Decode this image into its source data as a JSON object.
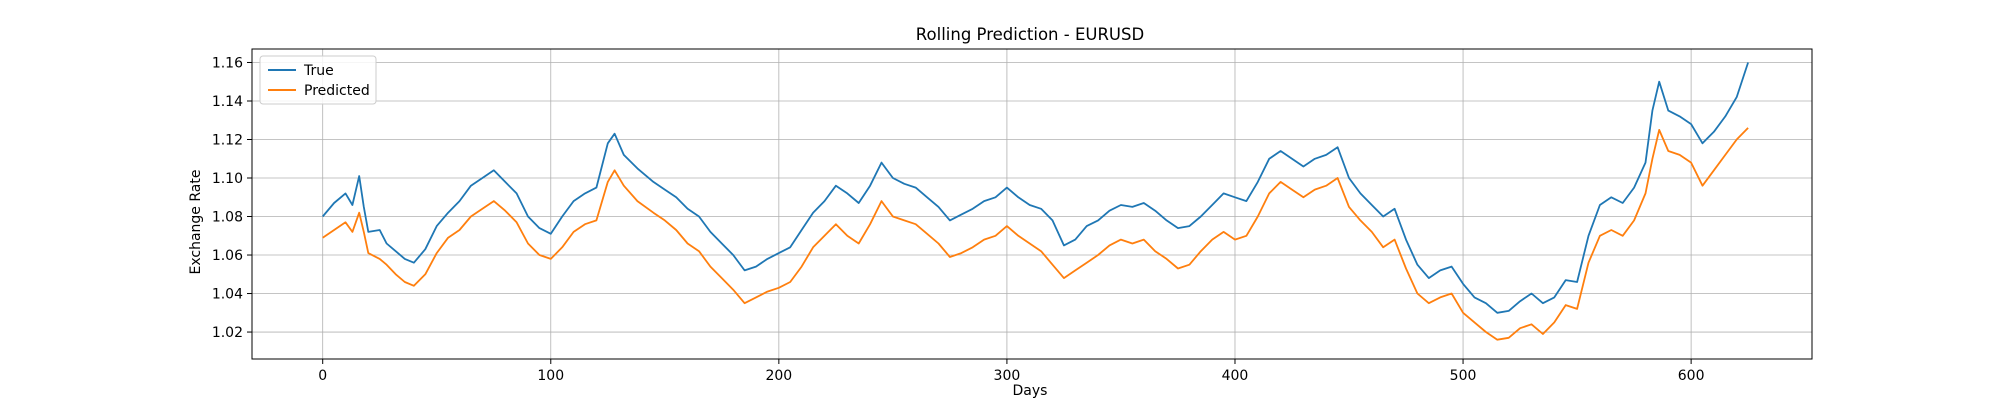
{
  "chart_data": {
    "type": "line",
    "title": "Rolling Prediction - EURUSD",
    "xlabel": "Days",
    "ylabel": "Exchange Rate",
    "xlim": [
      -31,
      653
    ],
    "ylim": [
      1.006,
      1.167
    ],
    "xticks": [
      0,
      100,
      200,
      300,
      400,
      500,
      600
    ],
    "xtick_labels": [
      "0",
      "100",
      "200",
      "300",
      "400",
      "500",
      "600"
    ],
    "yticks": [
      1.02,
      1.04,
      1.06,
      1.08,
      1.1,
      1.12,
      1.14,
      1.16
    ],
    "ytick_labels": [
      "1.02",
      "1.04",
      "1.06",
      "1.08",
      "1.10",
      "1.12",
      "1.14",
      "1.16"
    ],
    "grid": true,
    "legend_position": "top-left",
    "series": [
      {
        "name": "True",
        "color": "#1f77b4",
        "points": [
          [
            0,
            1.08
          ],
          [
            5,
            1.087
          ],
          [
            10,
            1.092
          ],
          [
            13,
            1.086
          ],
          [
            16,
            1.101
          ],
          [
            18,
            1.085
          ],
          [
            20,
            1.072
          ],
          [
            25,
            1.073
          ],
          [
            28,
            1.066
          ],
          [
            32,
            1.062
          ],
          [
            36,
            1.058
          ],
          [
            40,
            1.056
          ],
          [
            45,
            1.063
          ],
          [
            50,
            1.075
          ],
          [
            55,
            1.082
          ],
          [
            60,
            1.088
          ],
          [
            65,
            1.096
          ],
          [
            70,
            1.1
          ],
          [
            75,
            1.104
          ],
          [
            80,
            1.098
          ],
          [
            85,
            1.092
          ],
          [
            90,
            1.08
          ],
          [
            95,
            1.074
          ],
          [
            100,
            1.071
          ],
          [
            105,
            1.08
          ],
          [
            110,
            1.088
          ],
          [
            115,
            1.092
          ],
          [
            120,
            1.095
          ],
          [
            125,
            1.118
          ],
          [
            128,
            1.123
          ],
          [
            132,
            1.112
          ],
          [
            138,
            1.105
          ],
          [
            145,
            1.098
          ],
          [
            150,
            1.094
          ],
          [
            155,
            1.09
          ],
          [
            160,
            1.084
          ],
          [
            165,
            1.08
          ],
          [
            170,
            1.072
          ],
          [
            175,
            1.066
          ],
          [
            180,
            1.06
          ],
          [
            185,
            1.052
          ],
          [
            190,
            1.054
          ],
          [
            195,
            1.058
          ],
          [
            200,
            1.061
          ],
          [
            205,
            1.064
          ],
          [
            210,
            1.073
          ],
          [
            215,
            1.082
          ],
          [
            220,
            1.088
          ],
          [
            225,
            1.096
          ],
          [
            230,
            1.092
          ],
          [
            235,
            1.087
          ],
          [
            240,
            1.096
          ],
          [
            245,
            1.108
          ],
          [
            250,
            1.1
          ],
          [
            255,
            1.097
          ],
          [
            260,
            1.095
          ],
          [
            265,
            1.09
          ],
          [
            270,
            1.085
          ],
          [
            275,
            1.078
          ],
          [
            280,
            1.081
          ],
          [
            285,
            1.084
          ],
          [
            290,
            1.088
          ],
          [
            295,
            1.09
          ],
          [
            300,
            1.095
          ],
          [
            305,
            1.09
          ],
          [
            310,
            1.086
          ],
          [
            315,
            1.084
          ],
          [
            320,
            1.078
          ],
          [
            325,
            1.065
          ],
          [
            330,
            1.068
          ],
          [
            335,
            1.075
          ],
          [
            340,
            1.078
          ],
          [
            345,
            1.083
          ],
          [
            350,
            1.086
          ],
          [
            355,
            1.085
          ],
          [
            360,
            1.087
          ],
          [
            365,
            1.083
          ],
          [
            370,
            1.078
          ],
          [
            375,
            1.074
          ],
          [
            380,
            1.075
          ],
          [
            385,
            1.08
          ],
          [
            390,
            1.086
          ],
          [
            395,
            1.092
          ],
          [
            400,
            1.09
          ],
          [
            405,
            1.088
          ],
          [
            410,
            1.098
          ],
          [
            415,
            1.11
          ],
          [
            420,
            1.114
          ],
          [
            425,
            1.11
          ],
          [
            430,
            1.106
          ],
          [
            435,
            1.11
          ],
          [
            440,
            1.112
          ],
          [
            445,
            1.116
          ],
          [
            450,
            1.1
          ],
          [
            455,
            1.092
          ],
          [
            460,
            1.086
          ],
          [
            465,
            1.08
          ],
          [
            470,
            1.084
          ],
          [
            475,
            1.068
          ],
          [
            480,
            1.055
          ],
          [
            485,
            1.048
          ],
          [
            490,
            1.052
          ],
          [
            495,
            1.054
          ],
          [
            500,
            1.045
          ],
          [
            505,
            1.038
          ],
          [
            510,
            1.035
          ],
          [
            515,
            1.03
          ],
          [
            520,
            1.031
          ],
          [
            525,
            1.036
          ],
          [
            530,
            1.04
          ],
          [
            535,
            1.035
          ],
          [
            540,
            1.038
          ],
          [
            545,
            1.047
          ],
          [
            550,
            1.046
          ],
          [
            555,
            1.07
          ],
          [
            560,
            1.086
          ],
          [
            565,
            1.09
          ],
          [
            570,
            1.087
          ],
          [
            575,
            1.095
          ],
          [
            580,
            1.108
          ],
          [
            583,
            1.135
          ],
          [
            586,
            1.15
          ],
          [
            590,
            1.135
          ],
          [
            595,
            1.132
          ],
          [
            600,
            1.128
          ],
          [
            605,
            1.118
          ],
          [
            610,
            1.124
          ],
          [
            615,
            1.132
          ],
          [
            620,
            1.142
          ],
          [
            625,
            1.16
          ]
        ]
      },
      {
        "name": "Predicted",
        "color": "#ff7f0e",
        "points": [
          [
            0,
            1.069
          ],
          [
            5,
            1.073
          ],
          [
            10,
            1.077
          ],
          [
            13,
            1.072
          ],
          [
            16,
            1.082
          ],
          [
            18,
            1.072
          ],
          [
            20,
            1.061
          ],
          [
            25,
            1.058
          ],
          [
            28,
            1.055
          ],
          [
            32,
            1.05
          ],
          [
            36,
            1.046
          ],
          [
            40,
            1.044
          ],
          [
            45,
            1.05
          ],
          [
            50,
            1.061
          ],
          [
            55,
            1.069
          ],
          [
            60,
            1.073
          ],
          [
            65,
            1.08
          ],
          [
            70,
            1.084
          ],
          [
            75,
            1.088
          ],
          [
            80,
            1.083
          ],
          [
            85,
            1.077
          ],
          [
            90,
            1.066
          ],
          [
            95,
            1.06
          ],
          [
            100,
            1.058
          ],
          [
            105,
            1.064
          ],
          [
            110,
            1.072
          ],
          [
            115,
            1.076
          ],
          [
            120,
            1.078
          ],
          [
            125,
            1.098
          ],
          [
            128,
            1.104
          ],
          [
            132,
            1.096
          ],
          [
            138,
            1.088
          ],
          [
            145,
            1.082
          ],
          [
            150,
            1.078
          ],
          [
            155,
            1.073
          ],
          [
            160,
            1.066
          ],
          [
            165,
            1.062
          ],
          [
            170,
            1.054
          ],
          [
            175,
            1.048
          ],
          [
            180,
            1.042
          ],
          [
            185,
            1.035
          ],
          [
            190,
            1.038
          ],
          [
            195,
            1.041
          ],
          [
            200,
            1.043
          ],
          [
            205,
            1.046
          ],
          [
            210,
            1.054
          ],
          [
            215,
            1.064
          ],
          [
            220,
            1.07
          ],
          [
            225,
            1.076
          ],
          [
            230,
            1.07
          ],
          [
            235,
            1.066
          ],
          [
            240,
            1.076
          ],
          [
            245,
            1.088
          ],
          [
            250,
            1.08
          ],
          [
            255,
            1.078
          ],
          [
            260,
            1.076
          ],
          [
            265,
            1.071
          ],
          [
            270,
            1.066
          ],
          [
            275,
            1.059
          ],
          [
            280,
            1.061
          ],
          [
            285,
            1.064
          ],
          [
            290,
            1.068
          ],
          [
            295,
            1.07
          ],
          [
            300,
            1.075
          ],
          [
            305,
            1.07
          ],
          [
            310,
            1.066
          ],
          [
            315,
            1.062
          ],
          [
            320,
            1.055
          ],
          [
            325,
            1.048
          ],
          [
            330,
            1.052
          ],
          [
            335,
            1.056
          ],
          [
            340,
            1.06
          ],
          [
            345,
            1.065
          ],
          [
            350,
            1.068
          ],
          [
            355,
            1.066
          ],
          [
            360,
            1.068
          ],
          [
            365,
            1.062
          ],
          [
            370,
            1.058
          ],
          [
            375,
            1.053
          ],
          [
            380,
            1.055
          ],
          [
            385,
            1.062
          ],
          [
            390,
            1.068
          ],
          [
            395,
            1.072
          ],
          [
            400,
            1.068
          ],
          [
            405,
            1.07
          ],
          [
            410,
            1.08
          ],
          [
            415,
            1.092
          ],
          [
            420,
            1.098
          ],
          [
            425,
            1.094
          ],
          [
            430,
            1.09
          ],
          [
            435,
            1.094
          ],
          [
            440,
            1.096
          ],
          [
            445,
            1.1
          ],
          [
            450,
            1.085
          ],
          [
            455,
            1.078
          ],
          [
            460,
            1.072
          ],
          [
            465,
            1.064
          ],
          [
            470,
            1.068
          ],
          [
            475,
            1.053
          ],
          [
            480,
            1.04
          ],
          [
            485,
            1.035
          ],
          [
            490,
            1.038
          ],
          [
            495,
            1.04
          ],
          [
            500,
            1.03
          ],
          [
            505,
            1.025
          ],
          [
            510,
            1.02
          ],
          [
            515,
            1.016
          ],
          [
            520,
            1.017
          ],
          [
            525,
            1.022
          ],
          [
            530,
            1.024
          ],
          [
            535,
            1.019
          ],
          [
            540,
            1.025
          ],
          [
            545,
            1.034
          ],
          [
            550,
            1.032
          ],
          [
            555,
            1.056
          ],
          [
            560,
            1.07
          ],
          [
            565,
            1.073
          ],
          [
            570,
            1.07
          ],
          [
            575,
            1.078
          ],
          [
            580,
            1.092
          ],
          [
            583,
            1.11
          ],
          [
            586,
            1.125
          ],
          [
            590,
            1.114
          ],
          [
            595,
            1.112
          ],
          [
            600,
            1.108
          ],
          [
            605,
            1.096
          ],
          [
            610,
            1.104
          ],
          [
            615,
            1.112
          ],
          [
            620,
            1.12
          ],
          [
            625,
            1.126
          ]
        ]
      }
    ]
  }
}
